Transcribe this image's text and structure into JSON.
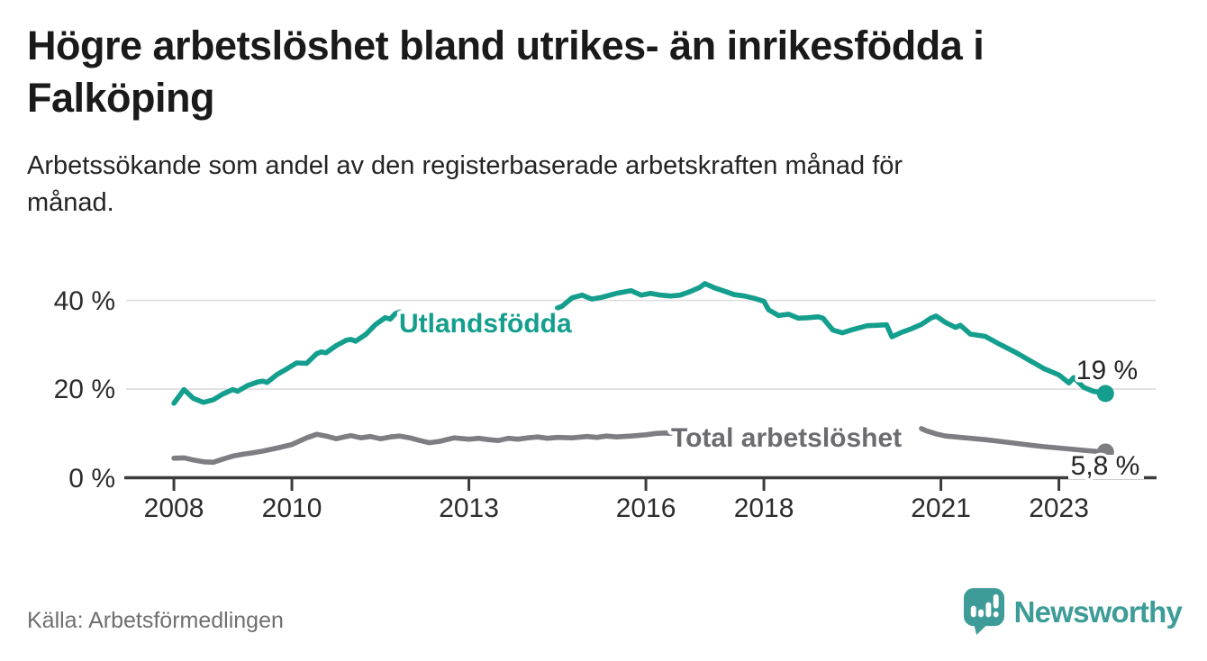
{
  "header": {
    "title_lines": [
      "Högre arbetslöshet bland utrikes- än inrikesfödda i",
      "Falköping"
    ],
    "subtitle_lines": [
      "Arbetssökande som andel av den registerbaserade arbetskraften månad för",
      "månad."
    ]
  },
  "footer": {
    "source": "Källa: Arbetsförmedlingen",
    "brand": "Newsworthy",
    "brand_color": "#3d9c98"
  },
  "chart_data": {
    "type": "line",
    "title": "Högre arbetslöshet bland utrikes- än inrikesfödda i Falköping",
    "subtitle": "Arbetssökande som andel av den registerbaserade arbetskraften månad för månad.",
    "unit": "%",
    "grid": true,
    "x_axis": {
      "range": [
        2007.19,
        2024.64
      ],
      "ticks": [
        2008,
        2010,
        2013,
        2016,
        2018,
        2021,
        2023
      ]
    },
    "y_axis": {
      "range": [
        0,
        44.8
      ],
      "gridlines": [
        20,
        40
      ],
      "ticks": [
        {
          "v": 0,
          "label": "0 %"
        },
        {
          "v": 20,
          "label": "20 %"
        },
        {
          "v": 40,
          "label": "40 %"
        }
      ]
    },
    "series": [
      {
        "name": "Utlandsfödda",
        "color": "#149e8d",
        "label_color": "#149e8d",
        "end_label": "19 %",
        "end_value": 19,
        "label_gap": [
          2011.9,
          2014.45
        ],
        "points": [
          [
            2008.0,
            16.8
          ],
          [
            2008.17,
            19.9
          ],
          [
            2008.33,
            17.9
          ],
          [
            2008.5,
            17.0
          ],
          [
            2008.67,
            17.6
          ],
          [
            2008.83,
            18.9
          ],
          [
            2009.0,
            19.9
          ],
          [
            2009.08,
            19.5
          ],
          [
            2009.25,
            20.8
          ],
          [
            2009.42,
            21.6
          ],
          [
            2009.5,
            21.8
          ],
          [
            2009.58,
            21.5
          ],
          [
            2009.75,
            23.3
          ],
          [
            2009.92,
            24.6
          ],
          [
            2010.08,
            25.9
          ],
          [
            2010.25,
            25.8
          ],
          [
            2010.42,
            28.0
          ],
          [
            2010.5,
            28.4
          ],
          [
            2010.58,
            28.2
          ],
          [
            2010.75,
            29.8
          ],
          [
            2010.92,
            31.0
          ],
          [
            2011.0,
            31.2
          ],
          [
            2011.08,
            30.8
          ],
          [
            2011.25,
            32.3
          ],
          [
            2011.42,
            34.6
          ],
          [
            2011.58,
            36.1
          ],
          [
            2011.67,
            35.8
          ],
          [
            2011.75,
            37.0
          ],
          [
            2011.83,
            37.4
          ],
          [
            2012.25,
            37.7
          ],
          [
            2012.75,
            37.9
          ],
          [
            2013.25,
            38.0
          ],
          [
            2013.75,
            38.1
          ],
          [
            2014.25,
            38.2
          ],
          [
            2014.5,
            38.3
          ],
          [
            2014.58,
            38.7
          ],
          [
            2014.75,
            40.6
          ],
          [
            2014.92,
            41.2
          ],
          [
            2015.08,
            40.3
          ],
          [
            2015.25,
            40.7
          ],
          [
            2015.5,
            41.6
          ],
          [
            2015.75,
            42.2
          ],
          [
            2015.92,
            41.2
          ],
          [
            2016.08,
            41.6
          ],
          [
            2016.25,
            41.2
          ],
          [
            2016.42,
            41.0
          ],
          [
            2016.58,
            41.2
          ],
          [
            2016.75,
            42.0
          ],
          [
            2016.92,
            43.0
          ],
          [
            2017.0,
            43.8
          ],
          [
            2017.17,
            42.8
          ],
          [
            2017.33,
            42.1
          ],
          [
            2017.5,
            41.3
          ],
          [
            2017.67,
            41.0
          ],
          [
            2017.83,
            40.5
          ],
          [
            2018.0,
            39.8
          ],
          [
            2018.08,
            37.9
          ],
          [
            2018.25,
            36.6
          ],
          [
            2018.42,
            36.9
          ],
          [
            2018.58,
            36.0
          ],
          [
            2018.75,
            36.1
          ],
          [
            2018.92,
            36.3
          ],
          [
            2019.0,
            36.0
          ],
          [
            2019.17,
            33.3
          ],
          [
            2019.33,
            32.7
          ],
          [
            2019.5,
            33.4
          ],
          [
            2019.75,
            34.3
          ],
          [
            2019.92,
            34.4
          ],
          [
            2020.08,
            34.5
          ],
          [
            2020.17,
            31.8
          ],
          [
            2020.33,
            32.8
          ],
          [
            2020.5,
            33.6
          ],
          [
            2020.67,
            34.6
          ],
          [
            2020.83,
            36.0
          ],
          [
            2020.92,
            36.5
          ],
          [
            2021.08,
            35.0
          ],
          [
            2021.25,
            33.9
          ],
          [
            2021.33,
            34.4
          ],
          [
            2021.5,
            32.4
          ],
          [
            2021.75,
            31.9
          ],
          [
            2022.0,
            30.1
          ],
          [
            2022.25,
            28.4
          ],
          [
            2022.5,
            26.5
          ],
          [
            2022.75,
            24.6
          ],
          [
            2023.0,
            23.2
          ],
          [
            2023.17,
            21.4
          ],
          [
            2023.25,
            22.6
          ],
          [
            2023.42,
            20.4
          ],
          [
            2023.58,
            19.5
          ],
          [
            2023.79,
            19.0
          ]
        ]
      },
      {
        "name": "Total arbetslöshet",
        "color": "#7d7d82",
        "label_color": "#6b6b70",
        "end_label": "5,8 %",
        "end_value": 5.8,
        "label_gap": [
          2016.44,
          2020.62
        ],
        "points": [
          [
            2008.0,
            4.4
          ],
          [
            2008.17,
            4.5
          ],
          [
            2008.33,
            4.0
          ],
          [
            2008.5,
            3.6
          ],
          [
            2008.67,
            3.5
          ],
          [
            2008.83,
            4.2
          ],
          [
            2009.0,
            4.9
          ],
          [
            2009.17,
            5.3
          ],
          [
            2009.33,
            5.6
          ],
          [
            2009.5,
            6.0
          ],
          [
            2009.75,
            6.7
          ],
          [
            2010.0,
            7.5
          ],
          [
            2010.25,
            9.0
          ],
          [
            2010.42,
            9.8
          ],
          [
            2010.58,
            9.4
          ],
          [
            2010.75,
            8.8
          ],
          [
            2010.92,
            9.3
          ],
          [
            2011.0,
            9.5
          ],
          [
            2011.17,
            9.0
          ],
          [
            2011.33,
            9.3
          ],
          [
            2011.5,
            8.8
          ],
          [
            2011.67,
            9.2
          ],
          [
            2011.83,
            9.4
          ],
          [
            2012.0,
            9.0
          ],
          [
            2012.17,
            8.4
          ],
          [
            2012.33,
            7.9
          ],
          [
            2012.5,
            8.2
          ],
          [
            2012.75,
            9.0
          ],
          [
            2013.0,
            8.7
          ],
          [
            2013.17,
            8.9
          ],
          [
            2013.33,
            8.6
          ],
          [
            2013.5,
            8.4
          ],
          [
            2013.67,
            8.9
          ],
          [
            2013.83,
            8.7
          ],
          [
            2014.0,
            9.0
          ],
          [
            2014.17,
            9.2
          ],
          [
            2014.33,
            8.9
          ],
          [
            2014.5,
            9.1
          ],
          [
            2014.75,
            9.0
          ],
          [
            2015.0,
            9.3
          ],
          [
            2015.17,
            9.1
          ],
          [
            2015.33,
            9.4
          ],
          [
            2015.5,
            9.2
          ],
          [
            2015.75,
            9.4
          ],
          [
            2016.0,
            9.7
          ],
          [
            2016.17,
            10.0
          ],
          [
            2016.33,
            10.1
          ],
          [
            2016.42,
            10.0
          ],
          [
            2017.0,
            9.9
          ],
          [
            2017.5,
            9.8
          ],
          [
            2018.0,
            9.9
          ],
          [
            2018.5,
            9.7
          ],
          [
            2019.0,
            9.6
          ],
          [
            2019.5,
            9.8
          ],
          [
            2020.0,
            10.6
          ],
          [
            2020.33,
            11.3
          ],
          [
            2020.67,
            11.1
          ],
          [
            2020.75,
            10.6
          ],
          [
            2020.92,
            9.9
          ],
          [
            2021.08,
            9.4
          ],
          [
            2021.25,
            9.2
          ],
          [
            2021.5,
            8.9
          ],
          [
            2021.75,
            8.6
          ],
          [
            2022.0,
            8.2
          ],
          [
            2022.25,
            7.8
          ],
          [
            2022.5,
            7.4
          ],
          [
            2022.75,
            7.0
          ],
          [
            2023.0,
            6.7
          ],
          [
            2023.25,
            6.4
          ],
          [
            2023.5,
            6.1
          ],
          [
            2023.79,
            5.8
          ]
        ]
      }
    ],
    "colors": {
      "grid": "#dcdcdc",
      "axis": "#3b3b3b"
    }
  }
}
